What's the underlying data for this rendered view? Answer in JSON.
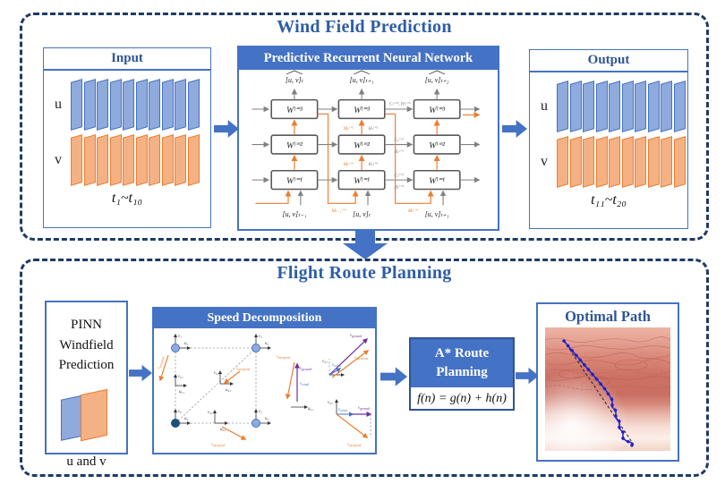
{
  "colors": {
    "accent_blue": "#4472C4",
    "title_blue": "#2E5DA6",
    "dark_navy": "#1E3A66",
    "sheet_blue": "#8FAADC",
    "sheet_orange": "#F4B183",
    "orange": "#ED7D31",
    "purple": "#7030A0",
    "wind_blue": "#4472C4",
    "path_blue": "#2020CC",
    "map_red": "#C96E60"
  },
  "top_section": {
    "title": "Wind Field Prediction",
    "input": {
      "header": "Input",
      "u_label": "u",
      "v_label": "v",
      "sheet_count": 10,
      "time_range": "t₁~t₁₀"
    },
    "rnn": {
      "header": "Predictive Recurrent Neural Network",
      "cells": {
        "l3": "Wˡ⁼³",
        "l2": "Wˡ⁼²",
        "l1": "Wˡ⁼¹"
      },
      "outputs": [
        "[u, v]ₜ",
        "[u, v]ₜ₊₁",
        "[u, v]ₜ₊₂"
      ],
      "inputs": [
        "[u, v]ₜ₋₁",
        "[u, v]ₜ",
        "[u, v]ₜ₊₁"
      ],
      "annotations": {
        "ch_l3": "Cₜˡ⁼³, Hₜˡ⁼³",
        "m_l2": "Mₜˡ⁼²",
        "h_l2": "Hₜˡ⁼²",
        "c_l2": "Cₜˡ⁼²",
        "h_l2b": "Hₜˡ⁼²",
        "m_l1": "Mₜˡ⁼¹",
        "h_l1": "Hₜˡ⁼¹",
        "c_l1": "Cₜˡ⁼¹",
        "h_l1b": "Hₜˡ⁼¹",
        "m_tm1_l3": "Mₜ₋₁ˡ⁼³",
        "m_t_l3": "Mₜˡ⁼³"
      }
    },
    "output": {
      "header": "Output",
      "u_label": "u",
      "v_label": "v",
      "sheet_count": 10,
      "time_range": "t₁₁~t₂₀"
    }
  },
  "bottom_section": {
    "title": "Flight Route Planning",
    "pinn": {
      "title": "PINN Windfield Prediction",
      "uv_label": "u and v"
    },
    "speed": {
      "header": "Speed Decomposition",
      "axis_labels": {
        "v1": "v₁",
        "u1": "u₁",
        "v3": "v₃",
        "u3": "u₃",
        "v0": "v₀",
        "u0": "u₀",
        "v2": "v₂",
        "u2": "u₂",
        "v01": "v₀₁",
        "u01": "u₀₁",
        "v03": "v₀₃",
        "u03": "u₀₃",
        "v02": "v₀₂",
        "u02": "u₀₂"
      },
      "vector_labels": {
        "airspeed_base": "v",
        "airspeed_sub": "airspeed",
        "ground_base": "v",
        "ground_sub": "ground",
        "wind_base": "v",
        "wind_sub": "wind"
      }
    },
    "astar": {
      "header": "A* Route Planning",
      "formula": "f(n) = g(n) + h(n)"
    },
    "optimal": {
      "title": "Optimal Path"
    }
  }
}
